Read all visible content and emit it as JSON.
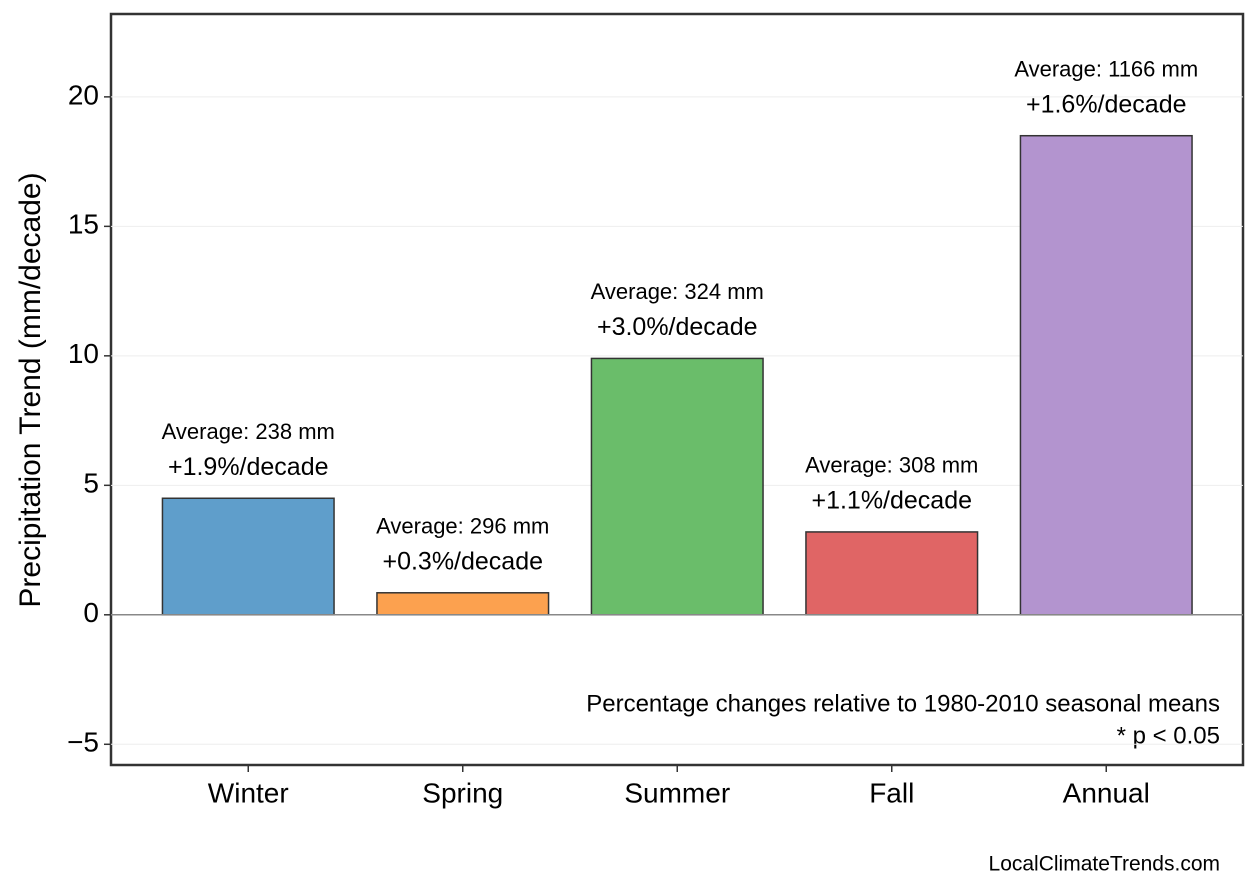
{
  "chart_data": {
    "type": "bar",
    "ylabel": "Precipitation Trend (mm/decade)",
    "categories": [
      "Winter",
      "Spring",
      "Summer",
      "Fall",
      "Annual"
    ],
    "values": [
      4.5,
      0.85,
      9.9,
      3.2,
      18.5
    ],
    "colors": [
      "#5f9ecb",
      "#fca14f",
      "#6abd6a",
      "#e06565",
      "#b394cf"
    ],
    "trend_labels": [
      "+1.9%/decade",
      "+0.3%/decade",
      "+3.0%/decade",
      "+1.1%/decade",
      "+1.6%/decade"
    ],
    "average_labels": [
      "Average: 238 mm",
      "Average: 296 mm",
      "Average: 324 mm",
      "Average: 308 mm",
      "Average: 1166 mm"
    ],
    "ylim": [
      -5.8,
      23.2
    ],
    "yticks": [
      {
        "value": -5,
        "label": "−5"
      },
      0,
      5,
      10,
      15,
      20
    ],
    "grid": true,
    "annotations": [
      "Percentage changes relative to 1980-2010 seasonal means",
      "* p < 0.05"
    ],
    "source": "LocalClimateTrends.com"
  }
}
